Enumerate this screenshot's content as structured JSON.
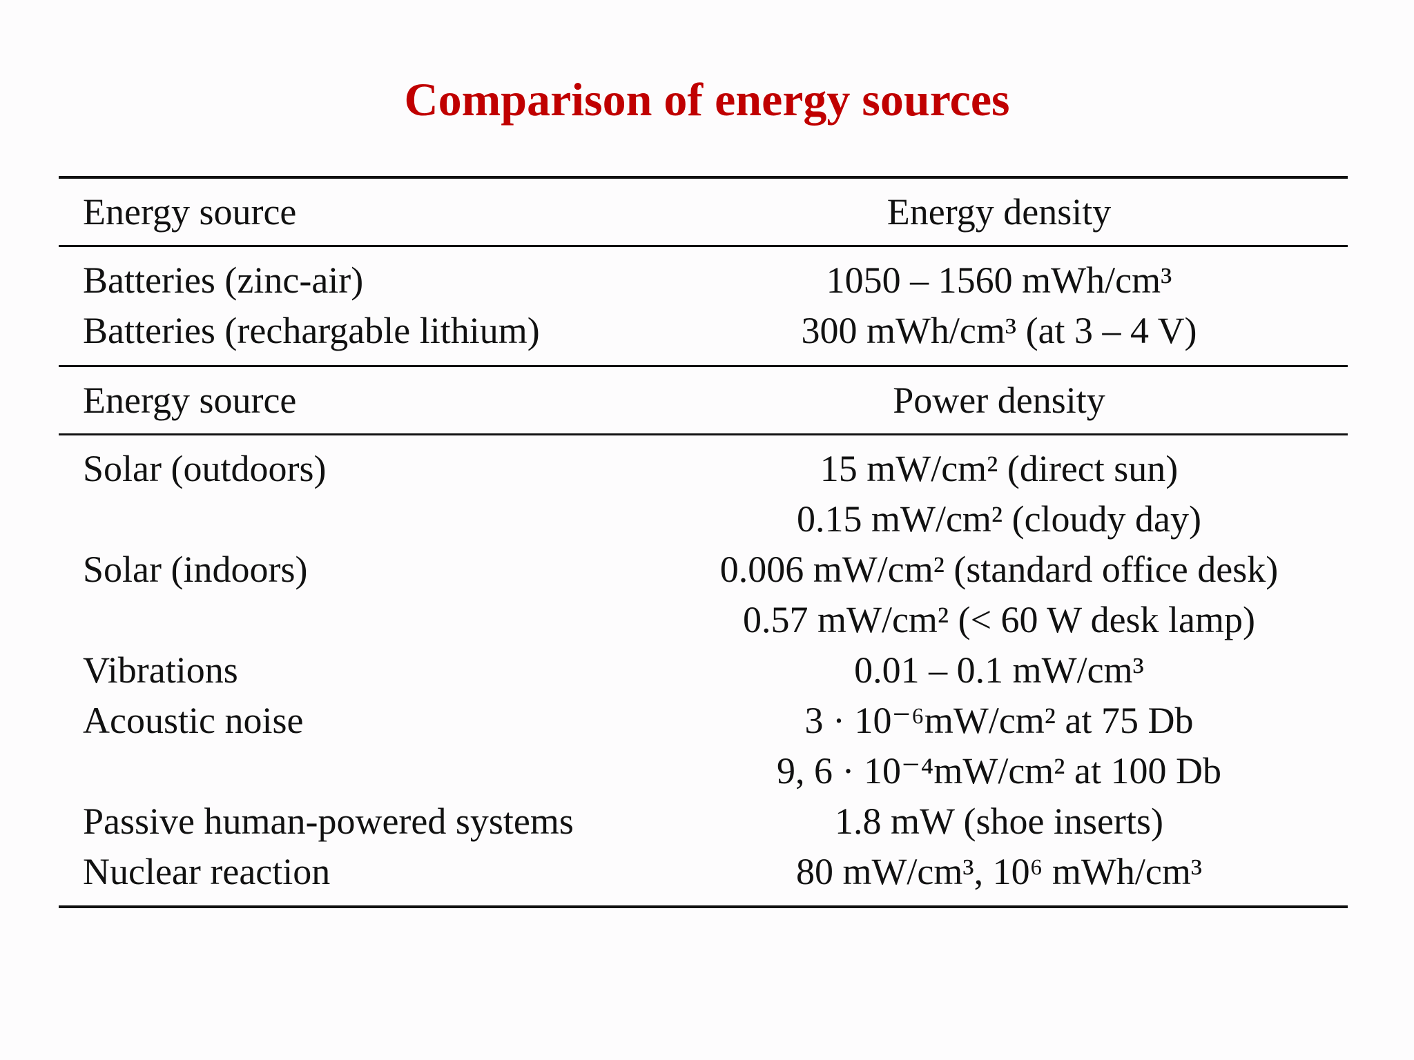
{
  "title": "Comparison of energy sources",
  "sections": [
    {
      "header": [
        "Energy source",
        "Energy density"
      ],
      "rows": [
        {
          "source": "Batteries (zinc-air)",
          "values": [
            "1050 – 1560 mWh/cm³"
          ]
        },
        {
          "source": "Batteries (rechargable lithium)",
          "values": [
            "300 mWh/cm³ (at 3 – 4 V)"
          ]
        }
      ]
    },
    {
      "header": [
        "Energy source",
        "Power density"
      ],
      "rows": [
        {
          "source": "Solar (outdoors)",
          "values": [
            "15 mW/cm² (direct sun)",
            "0.15 mW/cm² (cloudy day)"
          ]
        },
        {
          "source": "Solar (indoors)",
          "values": [
            "0.006 mW/cm² (standard office desk)",
            "0.57 mW/cm² (< 60 W desk lamp)"
          ]
        },
        {
          "source": "Vibrations",
          "values": [
            "0.01 – 0.1 mW/cm³"
          ]
        },
        {
          "source": "Acoustic noise",
          "values": [
            "3 · 10⁻⁶mW/cm² at 75 Db",
            "9, 6 · 10⁻⁴mW/cm² at 100 Db"
          ]
        },
        {
          "source": "Passive human-powered systems",
          "values": [
            "1.8 mW (shoe inserts)"
          ]
        },
        {
          "source": "Nuclear reaction",
          "values": [
            "80 mW/cm³, 10⁶ mWh/cm³"
          ]
        }
      ]
    }
  ]
}
